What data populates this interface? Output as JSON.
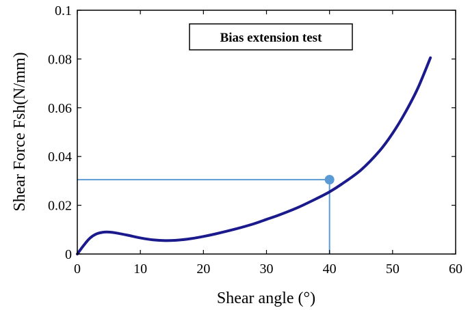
{
  "chart_data": {
    "type": "line",
    "xlabel": "Shear angle (°)",
    "ylabel": "Shear Force Fsh(N/mm)",
    "xlim": [
      0,
      60
    ],
    "ylim": [
      0,
      0.1
    ],
    "xticks": [
      0,
      10,
      20,
      30,
      40,
      50,
      60
    ],
    "yticks": [
      0,
      0.02,
      0.04,
      0.06,
      0.08,
      0.1
    ],
    "xtick_labels": [
      "0",
      "10",
      "20",
      "30",
      "40",
      "50",
      "60"
    ],
    "ytick_labels": [
      "0",
      "0.02",
      "0.04",
      "0.06",
      "0.08",
      "0.1"
    ],
    "grid": false,
    "annotation": "Bias extension test",
    "series": [
      {
        "color": "#1a1a8c",
        "x": [
          0,
          1,
          2,
          3,
          4,
          5,
          6,
          8,
          10,
          12,
          14,
          16,
          18,
          20,
          22,
          25,
          28,
          30,
          32,
          35,
          38,
          40,
          42,
          45,
          48,
          50,
          52,
          54,
          56
        ],
        "y": [
          0,
          0.0035,
          0.0065,
          0.0082,
          0.0089,
          0.009,
          0.0087,
          0.0077,
          0.0066,
          0.0058,
          0.0055,
          0.0057,
          0.0063,
          0.0072,
          0.0083,
          0.0102,
          0.0124,
          0.0142,
          0.016,
          0.0191,
          0.0228,
          0.0255,
          0.0288,
          0.0345,
          0.0425,
          0.0495,
          0.058,
          0.068,
          0.0805
        ]
      }
    ],
    "marker": {
      "x": 40,
      "y": 0.0305,
      "color": "#5b9bd5"
    }
  }
}
